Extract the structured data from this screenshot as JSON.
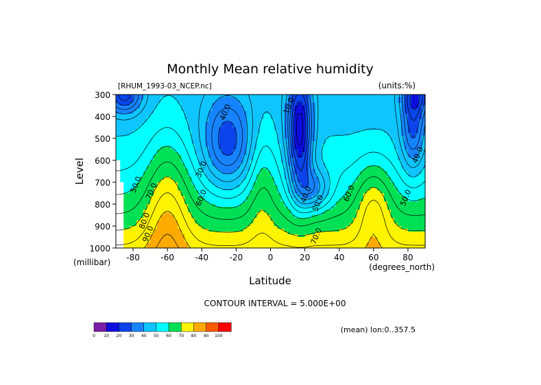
{
  "title": "Monthly Mean relative humidity",
  "file_label": "[RHUM_1993-03_NCEP.nc]",
  "units_label": "(units:%)",
  "footer": {
    "contour_interval": "CONTOUR INTERVAL = 5.000E+00",
    "mean_label": "(mean) lon:0..357.5"
  },
  "chart_data": {
    "type": "heatmap",
    "title": "Monthly Mean relative humidity",
    "xlabel": "Latitude",
    "ylabel": "Level",
    "x_unit": "(degrees_north)",
    "y_unit": "(millibar)",
    "xlim": [
      -90,
      90
    ],
    "ylim": [
      1000,
      300
    ],
    "x_ticks": [
      -80,
      -60,
      -40,
      -20,
      0,
      20,
      40,
      60,
      80
    ],
    "y_ticks": [
      300,
      400,
      500,
      600,
      700,
      800,
      900,
      1000
    ],
    "x_tick_labels": [
      "-80",
      "-60",
      "-40",
      "-20",
      "0",
      "20",
      "40",
      "60",
      "80"
    ],
    "y_tick_labels": [
      "300",
      "400",
      "500",
      "600",
      "700",
      "800",
      "900",
      "1000"
    ],
    "contour_interval": 5,
    "contour_labels": [
      {
        "text": "40.0",
        "lat": -25,
        "lev": 385
      },
      {
        "text": "10.0",
        "lat": 12,
        "lev": 355
      },
      {
        "text": "30.0",
        "lat": -39,
        "lev": 645
      },
      {
        "text": "50.0",
        "lat": -77,
        "lev": 715
      },
      {
        "text": "70.0",
        "lat": -68,
        "lev": 745
      },
      {
        "text": "60.0",
        "lat": -39,
        "lev": 775
      },
      {
        "text": "40.0",
        "lat": 22,
        "lev": 760
      },
      {
        "text": "50.0",
        "lat": 29,
        "lev": 800
      },
      {
        "text": "60.0",
        "lat": 47,
        "lev": 755
      },
      {
        "text": "40.0",
        "lat": 87,
        "lev": 580
      },
      {
        "text": "50.0",
        "lat": 80,
        "lev": 775
      },
      {
        "text": "80.0",
        "lat": -72,
        "lev": 880
      },
      {
        "text": "90.0",
        "lat": -70,
        "lev": 940
      },
      {
        "text": "70.0",
        "lat": 28,
        "lev": 950
      }
    ],
    "colorbar": {
      "levels": [
        "0",
        "10",
        "20",
        "30",
        "40",
        "50",
        "60",
        "70",
        "80",
        "90",
        "100"
      ],
      "colors": [
        "#7a1fa8",
        "#0c0cde",
        "#0a44ea",
        "#1683ff",
        "#0ec5ff",
        "#00ffff",
        "#00e054",
        "#fff400",
        "#ffaa00",
        "#ff5a00",
        "#ff0000"
      ]
    },
    "missing_color": "#ffffff",
    "grid": false
  }
}
